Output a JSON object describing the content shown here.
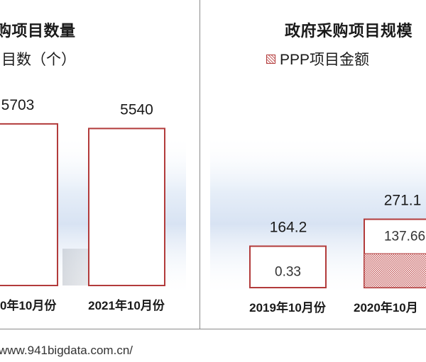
{
  "chart_data": [
    {
      "type": "bar",
      "title": "购项目数量",
      "legend": [
        "目数（个）"
      ],
      "categories": [
        "0年10月份",
        "2021年10月份"
      ],
      "series": [
        {
          "name": "目数（个）",
          "values": [
            5703,
            5540
          ]
        }
      ],
      "data_labels": [
        "5703",
        "5540"
      ]
    },
    {
      "type": "bar",
      "title": "政府采购项目规模",
      "legend": [
        "PPP项目金额"
      ],
      "categories": [
        "2019年10月份",
        "2020年10月"
      ],
      "totals": [
        164.2,
        271.1
      ],
      "total_labels": [
        "164.2",
        "271.1"
      ],
      "series": [
        {
          "name": "PPP项目金额",
          "values": [
            0.33,
            137.66
          ]
        }
      ],
      "segment_labels": [
        "0.33",
        "137.66"
      ]
    }
  ],
  "footer": {
    "source": "www.941bigdata.com.cn/"
  },
  "colors": {
    "bar_border": "#b23b3b",
    "ppp_pattern": "#c86464",
    "frame": "#8a8a8a"
  }
}
